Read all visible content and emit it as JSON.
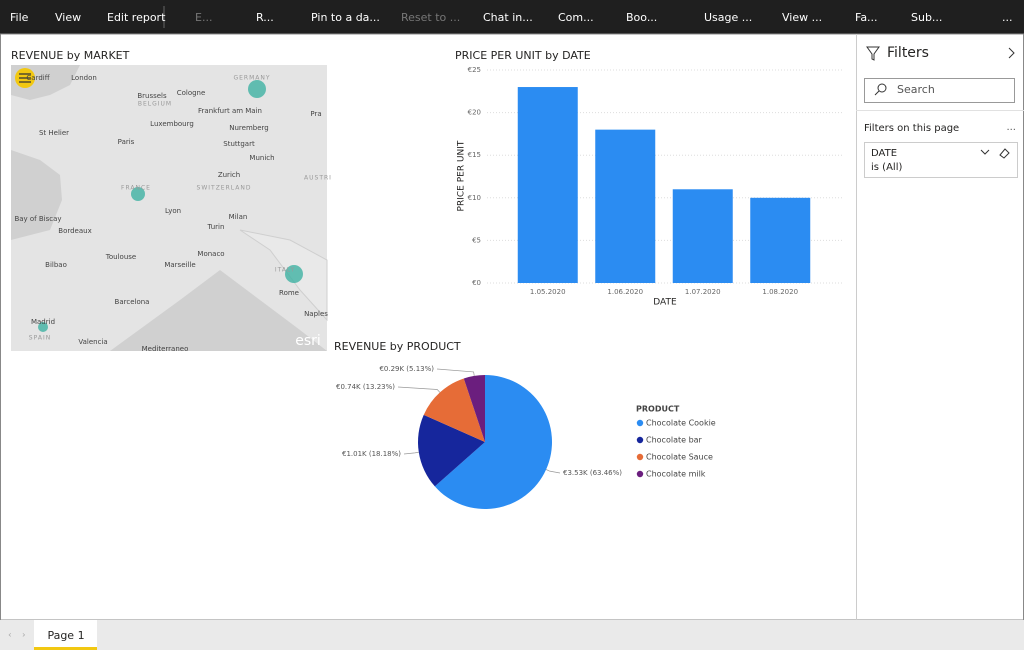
{
  "toolbar": {
    "items": [
      "File",
      "View",
      "Edit report",
      "E...",
      "R...",
      "Pin to a da...",
      "Reset to ...",
      "Chat in...",
      "Com...",
      "Boo...",
      "Usage ...",
      "View ...",
      "Fa...",
      "Sub...",
      "..."
    ]
  },
  "map": {
    "title": "REVENUE by MARKET",
    "places": [
      "Cardiff",
      "London",
      "Brussels",
      "BELGIUM",
      "Cologne",
      "GERMANY",
      "Frankfurt am Main",
      "Luxembourg",
      "Nuremberg",
      "Stuttgart",
      "Munich",
      "Paris",
      "St Helier",
      "FRANCE",
      "Zurich",
      "SWITZERLAND",
      "Lyon",
      "Milan",
      "Turin",
      "Bay of Biscay",
      "Bordeaux",
      "Toulouse",
      "Monaco",
      "Marseille",
      "Bilbao",
      "Barcelona",
      "ITALY",
      "Rome",
      "Madrid",
      "SPAIN",
      "Valencia",
      "Naples",
      "Mediterraneo",
      "Pra",
      "AUSTRI"
    ],
    "attribution": "esri"
  },
  "chart_data": [
    {
      "type": "bar",
      "title": "PRICE PER UNIT by DATE",
      "x_label": "DATE",
      "y_label": "PRICE PER UNIT",
      "categories": [
        "1.05.2020",
        "1.06.2020",
        "1.07.2020",
        "1.08.2020"
      ],
      "values": [
        23,
        18,
        11,
        10
      ],
      "color": "#2b8cf2",
      "ylim": [
        0,
        25
      ],
      "yticks": [
        {
          "value": 0,
          "label": "€0"
        },
        {
          "value": 5,
          "label": "€5"
        },
        {
          "value": 10,
          "label": "€10"
        },
        {
          "value": 15,
          "label": "€15"
        },
        {
          "value": 20,
          "label": "€20"
        },
        {
          "value": 25,
          "label": "€25"
        }
      ],
      "grid": true
    },
    {
      "type": "pie",
      "title": "REVENUE by PRODUCT",
      "legend_title": "PRODUCT",
      "categories": [
        "Chocolate Cookie",
        "Chocolate bar",
        "Chocolate Sauce",
        "Chocolate milk"
      ],
      "values": [
        63.46,
        18.18,
        13.23,
        5.13
      ],
      "value_labels": [
        "€3.53K (63.46%)",
        "€1.01K (18.18%)",
        "€0.74K (13.23%)",
        "€0.29K (5.13%)"
      ],
      "colors": [
        "#2b8cf2",
        "#16269c",
        "#e66c37",
        "#6b1e7e"
      ]
    }
  ],
  "filters": {
    "title": "Filters",
    "search": "Search",
    "section": "Filters on this page",
    "more": "...",
    "filter_name": "DATE",
    "filter_state": "is (All)"
  },
  "page_tab": "Page 1"
}
